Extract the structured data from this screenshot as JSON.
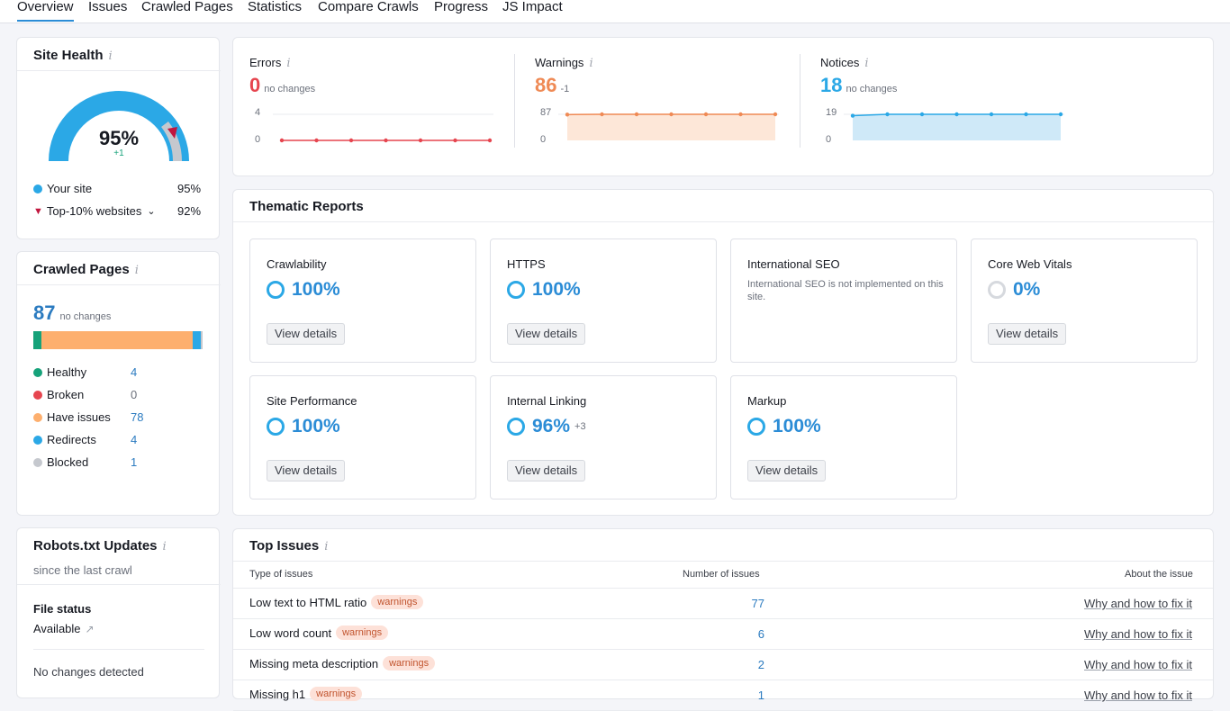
{
  "tabs": [
    "Overview",
    "Issues",
    "Crawled Pages",
    "Statistics",
    "Compare Crawls",
    "Progress",
    "JS Impact"
  ],
  "site_health": {
    "title": "Site Health",
    "percent": "95%",
    "delta": "+1",
    "gauge_value": 0.95,
    "your_site_label": "Your site",
    "your_site_value": "95%",
    "top10_label": "Top-10% websites",
    "top10_value": "92%",
    "colors": {
      "gauge": "#2ba8e6",
      "top": "#c1163e"
    }
  },
  "crawled_pages": {
    "title": "Crawled Pages",
    "count": "87",
    "sub": "no changes",
    "bar": [
      {
        "value": 4,
        "color": "#16a27a"
      },
      {
        "value": 78,
        "color": "#fdaf6e"
      },
      {
        "value": 4,
        "color": "#2ba8e6"
      },
      {
        "value": 1,
        "color": "#c5c8ce"
      }
    ],
    "legend": [
      {
        "label": "Healthy",
        "value": "4",
        "color": "#16a27a",
        "link": true
      },
      {
        "label": "Broken",
        "value": "0",
        "color": "#e6454f",
        "link": false
      },
      {
        "label": "Have issues",
        "value": "78",
        "color": "#fdaf6e",
        "link": true
      },
      {
        "label": "Redirects",
        "value": "4",
        "color": "#2ba8e6",
        "link": true
      },
      {
        "label": "Blocked",
        "value": "1",
        "color": "#c5c8ce",
        "link": true
      }
    ]
  },
  "robots": {
    "title": "Robots.txt Updates",
    "sub": "since the last crawl",
    "file_status_label": "File status",
    "file_status_value": "Available",
    "changes": "No changes detected"
  },
  "metrics": [
    {
      "label": "Errors",
      "value": "0",
      "sub": "no changes",
      "color": "#e6454f",
      "ymax": "4",
      "ymin": "0",
      "points": [
        0,
        0,
        0,
        0,
        0,
        0,
        0
      ],
      "fill": false
    },
    {
      "label": "Warnings",
      "value": "86",
      "sub": "-1",
      "color": "#ef8a55",
      "ymax": "87",
      "ymin": "0",
      "points": [
        86,
        87,
        87,
        87,
        87,
        87,
        87
      ],
      "fill": true,
      "fill_color": "#fde7d8"
    },
    {
      "label": "Notices",
      "value": "18",
      "sub": "no changes",
      "color": "#2ba8e6",
      "ymax": "19",
      "ymin": "0",
      "points": [
        18,
        19,
        19,
        19,
        19,
        19,
        19
      ],
      "fill": true,
      "fill_color": "#cfe9f8"
    }
  ],
  "thematic": {
    "title": "Thematic Reports",
    "view_details": "View details",
    "cards": [
      {
        "name": "Crawlability",
        "pct": "100%",
        "delta": "",
        "note": "",
        "ring": "full"
      },
      {
        "name": "HTTPS",
        "pct": "100%",
        "delta": "",
        "note": "",
        "ring": "full"
      },
      {
        "name": "International SEO",
        "pct": "",
        "delta": "",
        "note": "International SEO is not implemented on this site.",
        "ring": "none"
      },
      {
        "name": "Core Web Vitals",
        "pct": "0%",
        "delta": "",
        "note": "",
        "ring": "grey"
      },
      {
        "name": "Site Performance",
        "pct": "100%",
        "delta": "",
        "note": "",
        "ring": "full"
      },
      {
        "name": "Internal Linking",
        "pct": "96%",
        "delta": "+3",
        "note": "",
        "ring": "full"
      },
      {
        "name": "Markup",
        "pct": "100%",
        "delta": "",
        "note": "",
        "ring": "full"
      }
    ]
  },
  "top_issues": {
    "title": "Top Issues",
    "col_type": "Type of issues",
    "col_number": "Number of issues",
    "col_about": "About the issue",
    "fix_label": "Why and how to fix it",
    "rows": [
      {
        "name": "Low text to HTML ratio",
        "badge": "warnings",
        "count": "77"
      },
      {
        "name": "Low word count",
        "badge": "warnings",
        "count": "6"
      },
      {
        "name": "Missing meta description",
        "badge": "warnings",
        "count": "2"
      },
      {
        "name": "Missing h1",
        "badge": "warnings",
        "count": "1"
      }
    ]
  }
}
